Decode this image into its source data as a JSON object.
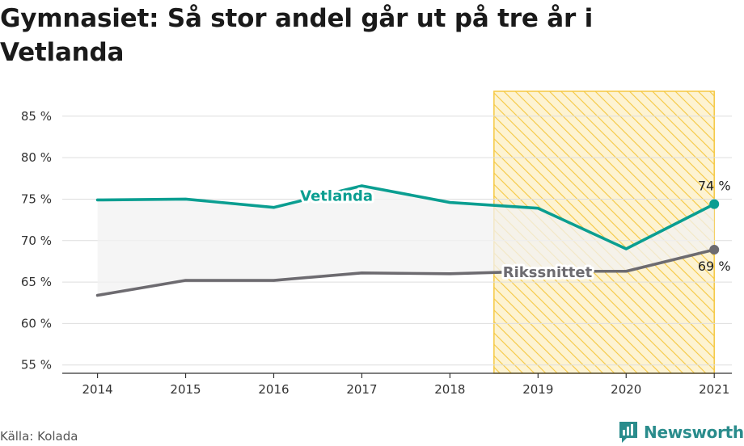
{
  "title": "Gymnasiet: Så stor andel går ut på tre år i Vetlanda",
  "source": "Källa: Kolada",
  "brand": {
    "name": "Newsworthy",
    "icon": "newsworthy-logo-icon"
  },
  "colors": {
    "vetlanda": "#0a9e91",
    "riksnitt": "#6d6b70",
    "highlight": "#f5c842",
    "grid": "#dddddd",
    "band": "#f2f2f2",
    "brand": "#2a8c8c"
  },
  "chart_data": {
    "type": "line",
    "x": [
      2014,
      2015,
      2016,
      2017,
      2018,
      2019,
      2020,
      2021
    ],
    "xlim": [
      2013.6,
      2021.2
    ],
    "ylim": [
      54,
      88
    ],
    "yticks": [
      55,
      60,
      65,
      70,
      75,
      80,
      85
    ],
    "ytick_labels": [
      "55 %",
      "60 %",
      "65 %",
      "70 %",
      "75 %",
      "80 %",
      "85 %"
    ],
    "xtick_labels": [
      "2014",
      "2015",
      "2016",
      "2017",
      "2018",
      "2019",
      "2020",
      "2021"
    ],
    "grid": true,
    "highlight_range": [
      2018.5,
      2021
    ],
    "series": [
      {
        "name": "Vetlanda",
        "label_at": 2016.3,
        "values": [
          74.9,
          75.0,
          74.0,
          76.6,
          74.6,
          73.9,
          69.0,
          74.4
        ],
        "end_label": "74 %"
      },
      {
        "name": "Rikssnittet",
        "label_at": 2018.6,
        "values": [
          63.4,
          65.2,
          65.2,
          66.1,
          66.0,
          66.3,
          66.3,
          68.9
        ],
        "end_label": "69 %"
      }
    ]
  }
}
